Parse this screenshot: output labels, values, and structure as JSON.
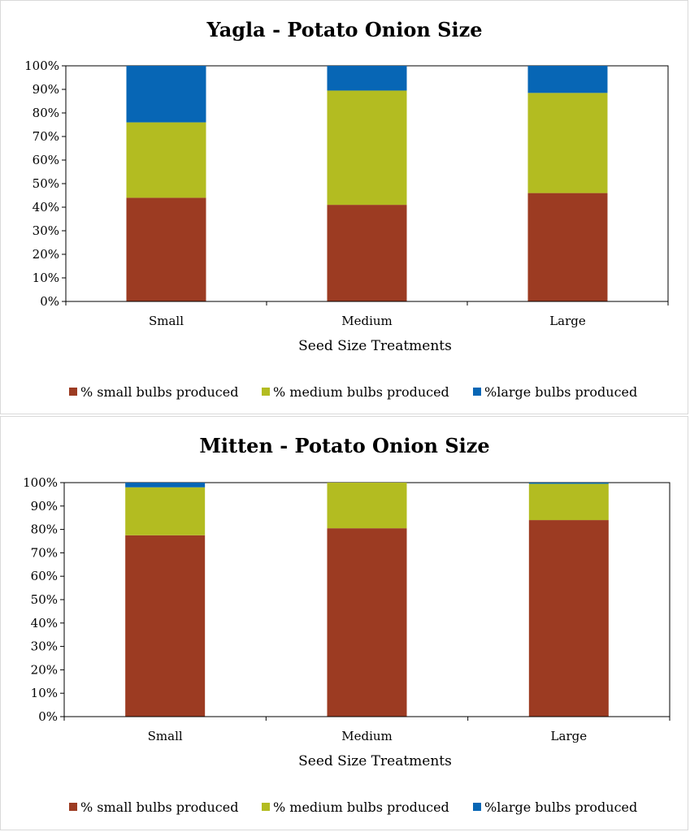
{
  "chart_data": [
    {
      "type": "bar",
      "stacked": true,
      "title": "Yagla - Potato Onion Size",
      "xlabel": "Seed Size Treatments",
      "ylabel": "",
      "ylim": [
        0,
        100
      ],
      "yticks": [
        "0%",
        "10%",
        "20%",
        "30%",
        "40%",
        "50%",
        "60%",
        "70%",
        "80%",
        "90%",
        "100%"
      ],
      "categories": [
        "Small",
        "Medium",
        "Large"
      ],
      "series": [
        {
          "name": "% small bulbs produced",
          "color": "#9c3b22",
          "values": [
            44,
            41,
            46
          ]
        },
        {
          "name": "% medium bulbs produced",
          "color": "#b3bc21",
          "values": [
            32,
            48.5,
            42.5
          ]
        },
        {
          "name": "%large bulbs produced",
          "color": "#0766b5",
          "values": [
            24,
            10.5,
            11.5
          ]
        }
      ],
      "legend_position": "bottom"
    },
    {
      "type": "bar",
      "stacked": true,
      "title": "Mitten - Potato Onion Size",
      "xlabel": "Seed Size Treatments",
      "ylabel": "",
      "ylim": [
        0,
        100
      ],
      "yticks": [
        "0%",
        "10%",
        "20%",
        "30%",
        "40%",
        "50%",
        "60%",
        "70%",
        "80%",
        "90%",
        "100%"
      ],
      "categories": [
        "Small",
        "Medium",
        "Large"
      ],
      "series": [
        {
          "name": "% small bulbs produced",
          "color": "#9c3b22",
          "values": [
            77.5,
            80.5,
            84
          ]
        },
        {
          "name": "% medium bulbs produced",
          "color": "#b3bc21",
          "values": [
            20.5,
            19.5,
            15.5
          ]
        },
        {
          "name": "%large bulbs produced",
          "color": "#0766b5",
          "values": [
            2,
            0,
            0.5
          ]
        }
      ],
      "legend_position": "bottom"
    }
  ]
}
